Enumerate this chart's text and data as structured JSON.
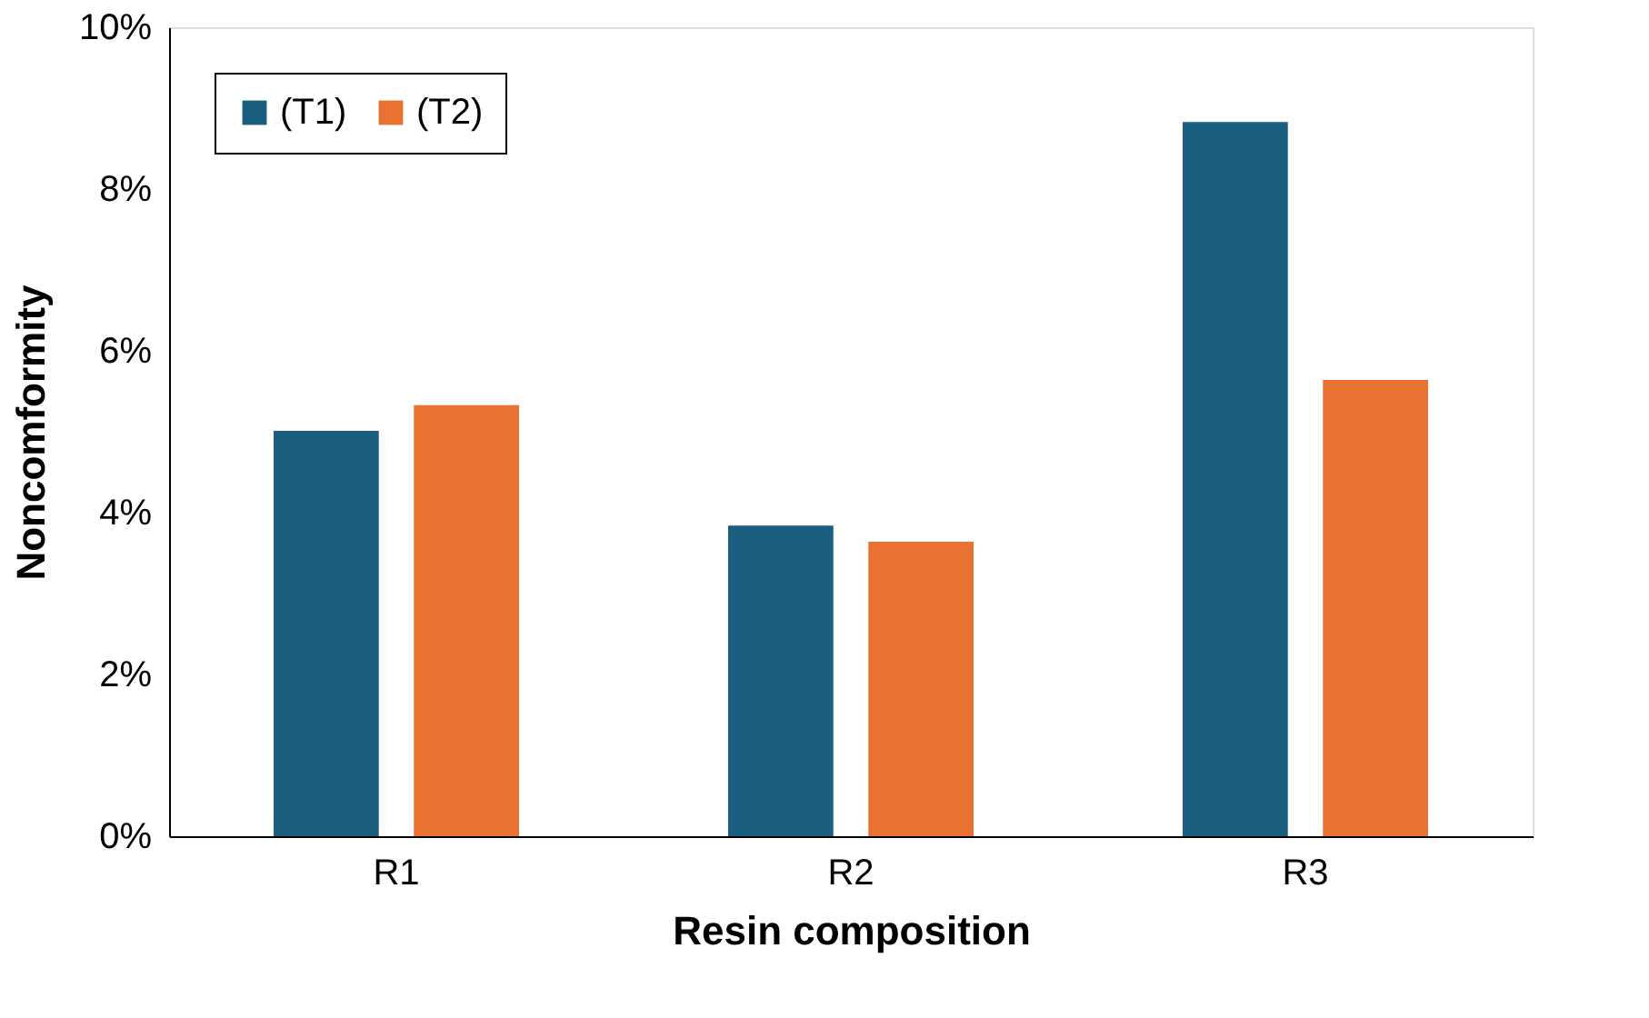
{
  "chart_data": {
    "type": "bar",
    "xlabel": "Resin composition",
    "ylabel": "Noncomformity",
    "categories": [
      "R1",
      "R2",
      "R3"
    ],
    "series": [
      {
        "name": "(T1)",
        "color": "#1a5e80",
        "values": [
          5.01,
          3.84,
          8.83
        ]
      },
      {
        "name": "(T2)",
        "color": "#e97132",
        "values": [
          5.33,
          3.64,
          5.64
        ]
      }
    ],
    "ylim": [
      0,
      10
    ],
    "yticks": [
      {
        "value": 0,
        "label": "0%"
      },
      {
        "value": 2,
        "label": "2%"
      },
      {
        "value": 4,
        "label": "4%"
      },
      {
        "value": 6,
        "label": "6%"
      },
      {
        "value": 8,
        "label": "8%"
      },
      {
        "value": 10,
        "label": "10%"
      }
    ],
    "grid": false,
    "legend": "top left"
  }
}
